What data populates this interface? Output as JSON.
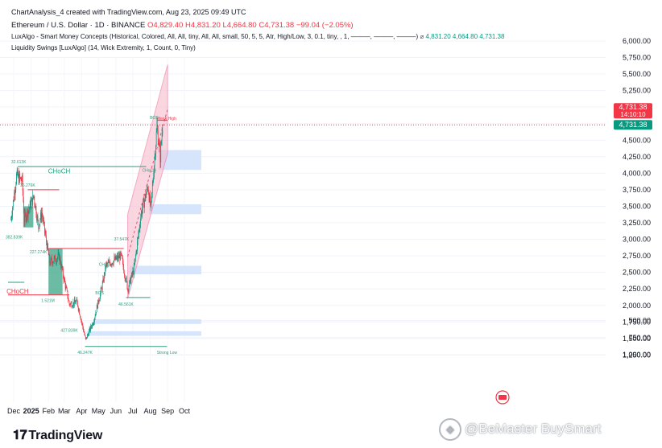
{
  "header": {
    "created": "ChartAnalysis_4 created with TradingView.com, Aug 23, 2025 09:49 UTC",
    "symbol": "Ethereum / U.S. Dollar · 1D · BINANCE",
    "ohlc": {
      "o": "O4,829.40",
      "h": "H4,831.20",
      "l": "L4,664.80",
      "c": "C4,731.38",
      "chg": "−99.04 (−2.05%)"
    },
    "ind1": "LuxAlgo - Smart Money Concepts (Historical, Colored, All, All, tiny, All, All, small, 50, 5, 5, Atr, High/Low, 3, 0.1, tiny, , 1, ———, ———, ———)",
    "ind1_vals": [
      "4,831.20",
      "4,664.80",
      "4,731.38"
    ],
    "ind2": "Liquidity Swings [LuxAlgo] (14, Wick Extremity, 1, Count, 0, Tiny)"
  },
  "brand": "TradingView",
  "watermark": "@BeMaster BuySmart",
  "colors": {
    "up": "#089981",
    "down": "#f23645",
    "channel": "#f7b6c8",
    "zone_blue": "#cfe0fb",
    "zone_green": "#2e9e7e"
  },
  "chart_data": {
    "type": "candlestick",
    "x_ticks": [
      "Dec",
      "2025",
      "Feb",
      "Mar",
      "Apr",
      "May",
      "Jun",
      "Jul",
      "Aug",
      "Sep",
      "Oct"
    ],
    "y_ticks": [
      "6,000.00",
      "5,750.00",
      "5,500.00",
      "5,250.00",
      "5,000.00",
      "4,750.00",
      "4,500.00",
      "4,250.00",
      "4,000.00",
      "3,750.00",
      "3,500.00",
      "3,250.00",
      "3,000.00",
      "2,750.00",
      "2,500.00",
      "2,250.00",
      "2,000.00",
      "1,750.00",
      "1,500.00",
      "1,250.00",
      "1,000.00",
      "750.00",
      "500.00"
    ],
    "price_tags": [
      {
        "label": "4,731.38",
        "time": "14:10:10",
        "color": "#f23645"
      },
      {
        "label": "4,731.38",
        "color": "#089981"
      }
    ],
    "close_anchors": [
      {
        "date": "2024-11-26",
        "close": 3300
      },
      {
        "date": "2024-12-06",
        "close": 3960
      },
      {
        "date": "2024-12-16",
        "close": 3880
      },
      {
        "date": "2024-12-20",
        "close": 3300
      },
      {
        "date": "2025-01-06",
        "close": 3650
      },
      {
        "date": "2025-01-14",
        "close": 3200
      },
      {
        "date": "2025-01-20",
        "close": 3400
      },
      {
        "date": "2025-02-03",
        "close": 2650
      },
      {
        "date": "2025-02-20",
        "close": 2740
      },
      {
        "date": "2025-03-10",
        "close": 2020
      },
      {
        "date": "2025-03-24",
        "close": 2050
      },
      {
        "date": "2025-04-08",
        "close": 1480
      },
      {
        "date": "2025-04-22",
        "close": 1760
      },
      {
        "date": "2025-05-09",
        "close": 2350
      },
      {
        "date": "2025-05-14",
        "close": 2600
      },
      {
        "date": "2025-06-10",
        "close": 2750
      },
      {
        "date": "2025-06-22",
        "close": 2250
      },
      {
        "date": "2025-07-03",
        "close": 2550
      },
      {
        "date": "2025-07-16",
        "close": 3400
      },
      {
        "date": "2025-07-28",
        "close": 3800
      },
      {
        "date": "2025-08-02",
        "close": 3450
      },
      {
        "date": "2025-08-13",
        "close": 4700
      },
      {
        "date": "2025-08-19",
        "close": 4250
      },
      {
        "date": "2025-08-23",
        "close": 4731.38
      }
    ],
    "annotations": [
      {
        "text": "CHoCH",
        "date": "2025-02-20",
        "price": 4000
      },
      {
        "text": "CHoCH",
        "date": "2024-12-08",
        "price": 2180
      },
      {
        "text": "CHoCH",
        "date": "2025-05-14",
        "price": 2600
      },
      {
        "text": "CHoCH",
        "date": "2025-07-30",
        "price": 4020
      },
      {
        "text": "BOS",
        "date": "2025-05-03",
        "price": 2170
      },
      {
        "text": "BOS",
        "date": "2025-08-08",
        "price": 4820
      },
      {
        "text": "Weak High",
        "date": "2025-08-30",
        "price": 4810
      },
      {
        "text": "Strong Low",
        "date": "2025-08-31",
        "price": 1270
      },
      {
        "text": "32.613K",
        "date": "2024-12-10",
        "price": 4150
      },
      {
        "text": "36.276K",
        "date": "2024-12-26",
        "price": 3800
      },
      {
        "text": "382.839K",
        "date": "2024-12-02",
        "price": 3010
      },
      {
        "text": "227.274K",
        "date": "2025-01-14",
        "price": 2790
      },
      {
        "text": "1.521M",
        "date": "2025-01-31",
        "price": 2050
      },
      {
        "text": "427.839K",
        "date": "2025-03-10",
        "price": 1600
      },
      {
        "text": "46.247K",
        "date": "2025-04-07",
        "price": 1270
      },
      {
        "text": "37.547K",
        "date": "2025-06-11",
        "price": 2980
      },
      {
        "text": "46.561K",
        "date": "2025-06-19",
        "price": 2000
      }
    ],
    "levels": [
      {
        "price": 4100,
        "from": "2024-12-08",
        "to": "2025-07-25",
        "color": "#2e9e7e"
      },
      {
        "price": 2160,
        "from": "2024-11-21",
        "to": "2025-03-10",
        "color": "#f23645"
      },
      {
        "price": 2350,
        "from": "2024-11-21",
        "to": "2024-12-20",
        "color": "#2e9e7e"
      },
      {
        "price": 2860,
        "from": "2025-02-01",
        "to": "2025-06-15",
        "color": "#f23645"
      },
      {
        "price": 3750,
        "from": "2024-12-26",
        "to": "2025-02-20",
        "color": "#f23645"
      },
      {
        "price": 2120,
        "from": "2025-06-19",
        "to": "2025-08-01",
        "color": "#2e9e7e"
      },
      {
        "price": 1380,
        "from": "2025-04-07",
        "to": "2025-08-31",
        "color": "#2e9e7e"
      },
      {
        "price": 4800,
        "from": "2025-08-13",
        "to": "2025-09-01",
        "color": "#f23645"
      }
    ],
    "zones": [
      {
        "from": "2025-08-16",
        "to": "2025-10-31",
        "low": 4050,
        "high": 4350,
        "color": "#cfe0fb"
      },
      {
        "from": "2025-07-30",
        "to": "2025-10-31",
        "low": 3380,
        "high": 3530,
        "color": "#cfe0fb"
      },
      {
        "from": "2025-06-25",
        "to": "2025-10-31",
        "low": 2470,
        "high": 2600,
        "color": "#cfe0fb"
      },
      {
        "from": "2025-04-22",
        "to": "2025-10-31",
        "low": 1720,
        "high": 1790,
        "color": "#cfe0fb"
      },
      {
        "from": "2025-04-10",
        "to": "2025-10-31",
        "low": 1540,
        "high": 1610,
        "color": "#cfe0fb"
      },
      {
        "from": "2025-02-01",
        "to": "2025-02-26",
        "low": 2160,
        "high": 2860,
        "color": "#2e9e7e"
      },
      {
        "from": "2024-12-18",
        "to": "2025-01-05",
        "low": 3180,
        "high": 3500,
        "color": "#2e9e7e"
      }
    ],
    "channel": {
      "from": "2025-06-22",
      "to": "2025-09-01",
      "lower_start": 2100,
      "lower_end": 4300,
      "upper_start": 3380,
      "upper_end": 5640
    }
  }
}
